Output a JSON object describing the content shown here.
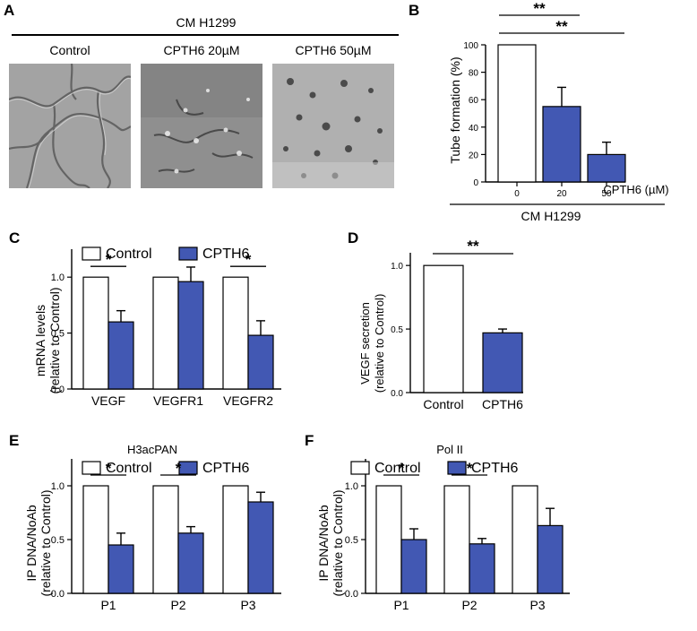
{
  "panel_letters": [
    "A",
    "B",
    "C",
    "D",
    "E",
    "F"
  ],
  "panel_a": {
    "header": "CM H1299",
    "images": [
      {
        "label": "Control"
      },
      {
        "label": "CPTH6 20µM"
      },
      {
        "label": "CPTH6 50µM"
      }
    ]
  },
  "colors": {
    "control": "#ffffff",
    "treated": "#4258b3",
    "axis": "#000000"
  },
  "chart_data": [
    {
      "id": "B",
      "type": "bar",
      "categories": [
        "0",
        "20",
        "50"
      ],
      "values": [
        100,
        55,
        20
      ],
      "errors": [
        0,
        14,
        9
      ],
      "colors": [
        "#ffffff",
        "#4258b3",
        "#4258b3"
      ],
      "ylabel": "Tube formation (%)",
      "xunit": "CPTH6 (µM)",
      "group_label": "CM H1299",
      "ylim": [
        0,
        100
      ],
      "yticks": [
        0,
        20,
        40,
        60,
        80,
        100
      ],
      "significance": [
        {
          "from": 0,
          "to": 1,
          "text": "**"
        },
        {
          "from": 0,
          "to": 2,
          "text": "**"
        }
      ]
    },
    {
      "id": "C",
      "type": "bar",
      "title": "",
      "categories": [
        "VEGF",
        "VEGFR1",
        "VEGFR2"
      ],
      "series": [
        {
          "name": "Control",
          "values": [
            1.0,
            1.0,
            1.0
          ],
          "errors": [
            0,
            0,
            0
          ]
        },
        {
          "name": "CPTH6",
          "values": [
            0.6,
            0.96,
            0.48
          ],
          "errors": [
            0.1,
            0.13,
            0.13
          ]
        }
      ],
      "ylabel": "mRNA levels",
      "ylabel2": "(relative to Control)",
      "ylim": [
        0,
        1.25
      ],
      "yticks": [
        "0.0",
        "0.5",
        "1.0"
      ],
      "legend": "top",
      "significance": [
        {
          "category": 0,
          "text": "*"
        },
        {
          "category": 2,
          "text": "*"
        }
      ]
    },
    {
      "id": "D",
      "type": "bar",
      "categories": [
        "Control",
        "CPTH6"
      ],
      "values": [
        1.0,
        0.47
      ],
      "errors": [
        0,
        0.03
      ],
      "colors": [
        "#ffffff",
        "#4258b3"
      ],
      "ylabel": "VEGF secretion",
      "ylabel2": "(relative to Control)",
      "ylim": [
        0,
        1.1
      ],
      "yticks": [
        "0.0",
        "0.5",
        "1.0"
      ],
      "significance": [
        {
          "from": 0,
          "to": 1,
          "text": "**"
        }
      ]
    },
    {
      "id": "E",
      "type": "bar",
      "title": "H3acPAN",
      "categories": [
        "P1",
        "P2",
        "P3"
      ],
      "series": [
        {
          "name": "Control",
          "values": [
            1.0,
            1.0,
            1.0
          ],
          "errors": [
            0,
            0,
            0
          ]
        },
        {
          "name": "CPTH6",
          "values": [
            0.45,
            0.56,
            0.85
          ],
          "errors": [
            0.11,
            0.06,
            0.09
          ]
        }
      ],
      "ylabel": "IP DNA/NoAb",
      "ylabel2": "(relative to Control)",
      "ylim": [
        0,
        1.25
      ],
      "yticks": [
        "0.0",
        "0.5",
        "1.0"
      ],
      "legend": "top",
      "significance": [
        {
          "category": 0,
          "text": "*"
        },
        {
          "category": 1,
          "text": "*"
        }
      ]
    },
    {
      "id": "F",
      "type": "bar",
      "title": "Pol II",
      "categories": [
        "P1",
        "P2",
        "P3"
      ],
      "series": [
        {
          "name": "Control",
          "values": [
            1.0,
            1.0,
            1.0
          ],
          "errors": [
            0,
            0,
            0
          ]
        },
        {
          "name": "CPTH6",
          "values": [
            0.5,
            0.46,
            0.63
          ],
          "errors": [
            0.1,
            0.05,
            0.16
          ]
        }
      ],
      "ylabel": "IP DNA/NoAb",
      "ylabel2": "(relative to Control)",
      "ylim": [
        0,
        1.25
      ],
      "yticks": [
        "0.0",
        "0.5",
        "1.0"
      ],
      "legend": "top",
      "significance": [
        {
          "category": 0,
          "text": "*"
        },
        {
          "category": 1,
          "text": "*"
        }
      ]
    }
  ]
}
